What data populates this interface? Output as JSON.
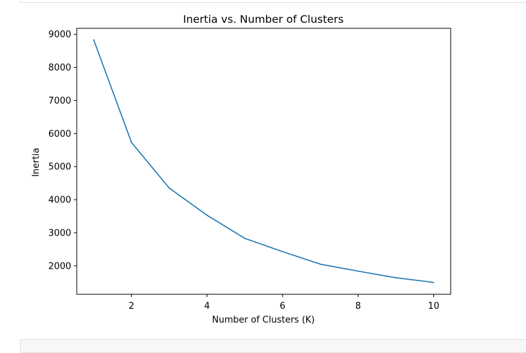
{
  "chart_data": {
    "type": "line",
    "title": "Inertia vs. Number of Clusters",
    "xlabel": "Number of Clusters (K)",
    "ylabel": "Inertia",
    "xlim": [
      0.55,
      10.45
    ],
    "ylim": [
      1140,
      9180
    ],
    "xticks": [
      2,
      4,
      6,
      8,
      10
    ],
    "yticks": [
      2000,
      3000,
      4000,
      5000,
      6000,
      7000,
      8000,
      9000
    ],
    "grid": false,
    "series": [
      {
        "x": [
          1,
          2,
          3,
          4,
          5,
          6,
          7,
          8,
          9,
          10
        ],
        "y": [
          8830,
          5730,
          4350,
          3530,
          2830,
          2430,
          2050,
          1840,
          1640,
          1500
        ],
        "color": "#1f77b4"
      }
    ]
  }
}
